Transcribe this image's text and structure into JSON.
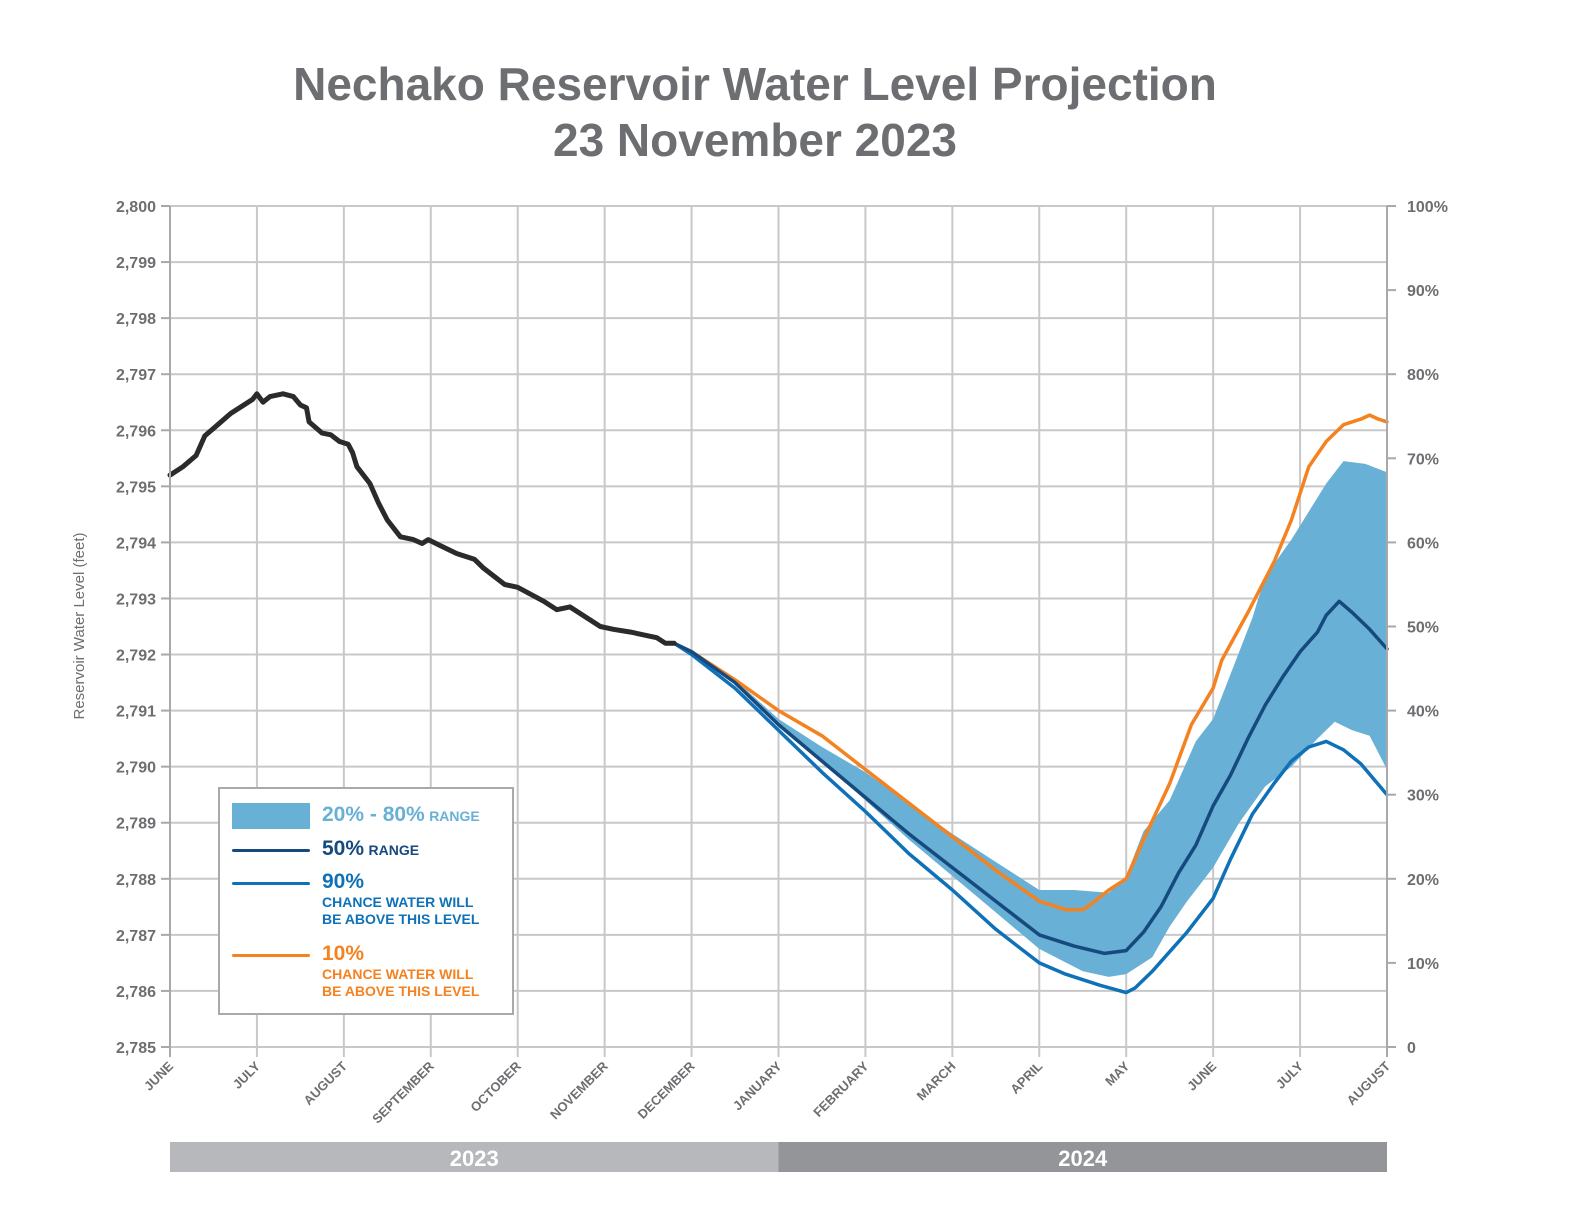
{
  "title": {
    "line1": "Nechako Reservoir Water Level Projection",
    "line2": "23 November 2023"
  },
  "colors": {
    "historical": "#2b2b2b",
    "p50": "#164a7f",
    "p90": "#0f71b8",
    "p10": "#f58220",
    "band": "#68b0d5",
    "grid": "#c8c8cb",
    "axis": "#a7a9ac",
    "text": "#6d6e71",
    "year2023": "#b6b8bb",
    "year2024": "#939598"
  },
  "legend": {
    "band": {
      "big": "20% - 80%",
      "small": "RANGE"
    },
    "p50": {
      "big": "50%",
      "small": "RANGE"
    },
    "p90": {
      "big": "90%",
      "line1": "CHANCE WATER WILL",
      "line2": "BE ABOVE THIS LEVEL"
    },
    "p10": {
      "big": "10%",
      "line1": "CHANCE WATER WILL",
      "line2": "BE ABOVE THIS LEVEL"
    }
  },
  "chart_data": {
    "type": "line",
    "title": "Nechako Reservoir Water Level Projection 23 November 2023",
    "xlabel": "",
    "ylabel": "Reservoir Water Level (feet)",
    "y2label": "",
    "ylim": [
      2785,
      2800
    ],
    "y2lim": [
      0,
      100
    ],
    "grid": true,
    "legend_position": "bottom-left",
    "x_unit": "months since 1 June 2023",
    "x_categories": [
      "JUNE",
      "JULY",
      "AUGUST",
      "SEPTEMBER",
      "OCTOBER",
      "NOVEMBER",
      "DECEMBER",
      "JANUARY",
      "FEBRUARY",
      "MARCH",
      "APRIL",
      "MAY",
      "JUNE",
      "JULY",
      "AUGUST"
    ],
    "y_ticks": [
      "2,785",
      "2,786",
      "2,787",
      "2,788",
      "2,789",
      "2,790",
      "2,791",
      "2,792",
      "2,793",
      "2,794",
      "2,795",
      "2,796",
      "2,797",
      "2,798",
      "2,799",
      "2,800"
    ],
    "y2_ticks": [
      "0",
      "10%",
      "20%",
      "30%",
      "40%",
      "50%",
      "60%",
      "70%",
      "80%",
      "90%",
      "100%"
    ],
    "years": [
      {
        "label": "2023",
        "from": 0,
        "to": 7
      },
      {
        "label": "2024",
        "from": 7,
        "to": 14
      }
    ],
    "series": [
      {
        "name": "Historical",
        "key": "historical",
        "points": [
          [
            0,
            2795.2
          ],
          [
            0.15,
            2795.35
          ],
          [
            0.3,
            2795.55
          ],
          [
            0.4,
            2795.9
          ],
          [
            0.55,
            2796.1
          ],
          [
            0.7,
            2796.3
          ],
          [
            0.85,
            2796.45
          ],
          [
            0.95,
            2796.55
          ],
          [
            1.0,
            2796.65
          ],
          [
            1.07,
            2796.5
          ],
          [
            1.15,
            2796.6
          ],
          [
            1.3,
            2796.65
          ],
          [
            1.42,
            2796.6
          ],
          [
            1.5,
            2796.45
          ],
          [
            1.57,
            2796.4
          ],
          [
            1.6,
            2796.15
          ],
          [
            1.75,
            2795.95
          ],
          [
            1.85,
            2795.92
          ],
          [
            1.95,
            2795.8
          ],
          [
            2.05,
            2795.75
          ],
          [
            2.1,
            2795.6
          ],
          [
            2.15,
            2795.35
          ],
          [
            2.3,
            2795.05
          ],
          [
            2.4,
            2794.7
          ],
          [
            2.5,
            2794.4
          ],
          [
            2.65,
            2794.1
          ],
          [
            2.8,
            2794.05
          ],
          [
            2.9,
            2793.98
          ],
          [
            2.97,
            2794.05
          ],
          [
            3.1,
            2793.95
          ],
          [
            3.3,
            2793.8
          ],
          [
            3.5,
            2793.7
          ],
          [
            3.6,
            2793.55
          ],
          [
            3.85,
            2793.25
          ],
          [
            4.0,
            2793.2
          ],
          [
            4.3,
            2792.95
          ],
          [
            4.45,
            2792.8
          ],
          [
            4.6,
            2792.85
          ],
          [
            4.7,
            2792.75
          ],
          [
            4.95,
            2792.5
          ],
          [
            5.1,
            2792.45
          ],
          [
            5.3,
            2792.4
          ],
          [
            5.45,
            2792.35
          ],
          [
            5.6,
            2792.3
          ],
          [
            5.7,
            2792.2
          ],
          [
            5.8,
            2792.2
          ]
        ]
      },
      {
        "name": "20% - 80% range",
        "key": "band",
        "upper": [
          [
            6.5,
            2791.55
          ],
          [
            7.0,
            2790.85
          ],
          [
            7.5,
            2790.35
          ],
          [
            8.0,
            2789.9
          ],
          [
            8.5,
            2789.35
          ],
          [
            9.0,
            2788.8
          ],
          [
            9.5,
            2788.3
          ],
          [
            10.0,
            2787.8
          ],
          [
            10.4,
            2787.8
          ],
          [
            10.8,
            2787.75
          ],
          [
            11.0,
            2788.05
          ],
          [
            11.2,
            2788.85
          ],
          [
            11.5,
            2789.4
          ],
          [
            11.8,
            2790.45
          ],
          [
            12.0,
            2790.85
          ],
          [
            12.2,
            2791.65
          ],
          [
            12.45,
            2792.65
          ],
          [
            12.6,
            2793.4
          ],
          [
            12.9,
            2794.05
          ],
          [
            13.1,
            2794.55
          ],
          [
            13.3,
            2795.05
          ],
          [
            13.5,
            2795.45
          ],
          [
            13.75,
            2795.4
          ],
          [
            14.0,
            2795.25
          ]
        ],
        "lower": [
          [
            6.5,
            2791.55
          ],
          [
            7.0,
            2790.75
          ],
          [
            7.5,
            2790.1
          ],
          [
            8.0,
            2789.4
          ],
          [
            8.5,
            2788.7
          ],
          [
            9.0,
            2788.05
          ],
          [
            9.5,
            2787.4
          ],
          [
            10.0,
            2786.75
          ],
          [
            10.5,
            2786.35
          ],
          [
            10.8,
            2786.25
          ],
          [
            11.0,
            2786.3
          ],
          [
            11.3,
            2786.6
          ],
          [
            11.5,
            2787.15
          ],
          [
            11.7,
            2787.6
          ],
          [
            12.0,
            2788.2
          ],
          [
            12.3,
            2789.0
          ],
          [
            12.6,
            2789.65
          ],
          [
            12.9,
            2790.0
          ],
          [
            13.2,
            2790.5
          ],
          [
            13.4,
            2790.8
          ],
          [
            13.6,
            2790.65
          ],
          [
            13.8,
            2790.55
          ],
          [
            14.0,
            2789.95
          ]
        ]
      },
      {
        "name": "50% range",
        "key": "p50",
        "points": [
          [
            5.8,
            2792.2
          ],
          [
            6.0,
            2792.05
          ],
          [
            6.5,
            2791.5
          ],
          [
            7.0,
            2790.75
          ],
          [
            7.5,
            2790.1
          ],
          [
            8.0,
            2789.45
          ],
          [
            8.5,
            2788.8
          ],
          [
            9.0,
            2788.2
          ],
          [
            9.5,
            2787.6
          ],
          [
            10.0,
            2787.0
          ],
          [
            10.4,
            2786.8
          ],
          [
            10.75,
            2786.67
          ],
          [
            11.0,
            2786.72
          ],
          [
            11.2,
            2787.05
          ],
          [
            11.4,
            2787.5
          ],
          [
            11.6,
            2788.1
          ],
          [
            11.8,
            2788.6
          ],
          [
            12.0,
            2789.3
          ],
          [
            12.2,
            2789.85
          ],
          [
            12.4,
            2790.5
          ],
          [
            12.6,
            2791.1
          ],
          [
            12.8,
            2791.6
          ],
          [
            13.0,
            2792.05
          ],
          [
            13.2,
            2792.4
          ],
          [
            13.3,
            2792.7
          ],
          [
            13.45,
            2792.95
          ],
          [
            13.6,
            2792.75
          ],
          [
            13.8,
            2792.45
          ],
          [
            14.0,
            2792.1
          ]
        ]
      },
      {
        "name": "90% chance water will be above this level",
        "key": "p90",
        "points": [
          [
            5.8,
            2792.2
          ],
          [
            6.0,
            2792.0
          ],
          [
            6.5,
            2791.4
          ],
          [
            7.0,
            2790.65
          ],
          [
            7.5,
            2789.9
          ],
          [
            8.0,
            2789.2
          ],
          [
            8.5,
            2788.45
          ],
          [
            9.0,
            2787.8
          ],
          [
            9.5,
            2787.1
          ],
          [
            10.0,
            2786.5
          ],
          [
            10.3,
            2786.3
          ],
          [
            10.7,
            2786.1
          ],
          [
            11.0,
            2785.97
          ],
          [
            11.1,
            2786.05
          ],
          [
            11.3,
            2786.35
          ],
          [
            11.5,
            2786.7
          ],
          [
            11.7,
            2787.05
          ],
          [
            12.0,
            2787.65
          ],
          [
            12.2,
            2788.35
          ],
          [
            12.45,
            2789.15
          ],
          [
            12.7,
            2789.7
          ],
          [
            12.9,
            2790.1
          ],
          [
            13.1,
            2790.35
          ],
          [
            13.3,
            2790.45
          ],
          [
            13.5,
            2790.3
          ],
          [
            13.7,
            2790.05
          ],
          [
            14.0,
            2789.5
          ]
        ]
      },
      {
        "name": "10% chance water will be above this level",
        "key": "p10",
        "points": [
          [
            5.8,
            2792.2
          ],
          [
            6.0,
            2792.05
          ],
          [
            6.5,
            2791.55
          ],
          [
            7.0,
            2791.0
          ],
          [
            7.5,
            2790.55
          ],
          [
            8.0,
            2789.95
          ],
          [
            8.5,
            2789.35
          ],
          [
            9.0,
            2788.75
          ],
          [
            9.5,
            2788.15
          ],
          [
            10.0,
            2787.6
          ],
          [
            10.3,
            2787.45
          ],
          [
            10.5,
            2787.45
          ],
          [
            10.6,
            2787.55
          ],
          [
            10.8,
            2787.8
          ],
          [
            11.0,
            2788.0
          ],
          [
            11.2,
            2788.7
          ],
          [
            11.5,
            2789.7
          ],
          [
            11.75,
            2790.75
          ],
          [
            12.0,
            2791.4
          ],
          [
            12.1,
            2791.9
          ],
          [
            12.4,
            2792.75
          ],
          [
            12.7,
            2793.65
          ],
          [
            12.9,
            2794.4
          ],
          [
            13.1,
            2795.35
          ],
          [
            13.3,
            2795.8
          ],
          [
            13.5,
            2796.1
          ],
          [
            13.7,
            2796.2
          ],
          [
            13.8,
            2796.27
          ],
          [
            13.9,
            2796.2
          ],
          [
            14.0,
            2796.15
          ]
        ]
      }
    ]
  }
}
